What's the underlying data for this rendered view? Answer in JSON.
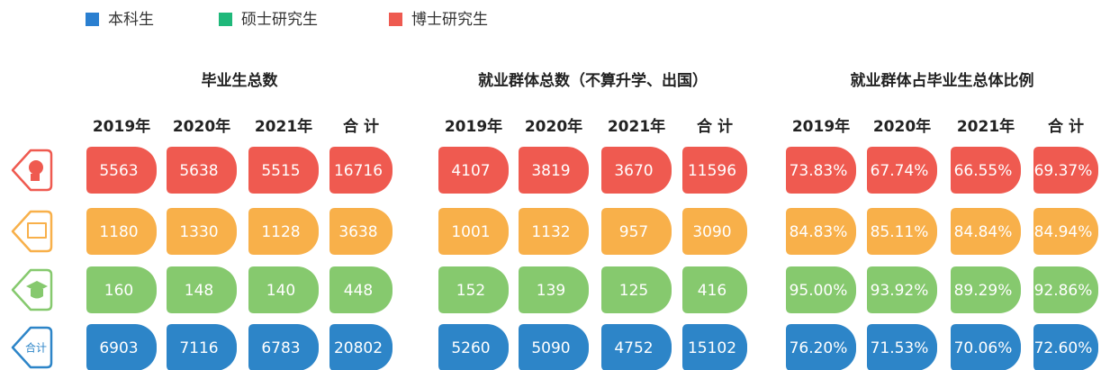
{
  "legend": [
    {
      "label": "本科生",
      "color": "#2a7fd0"
    },
    {
      "label": "硕士研究生",
      "color": "#1fb87a"
    },
    {
      "label": "博士研究生",
      "color": "#ee5a50"
    }
  ],
  "total_icon_label": "合计",
  "sections": [
    {
      "title": "毕业生总数",
      "columns": [
        "2019年",
        "2020年",
        "2021年",
        "合 计"
      ],
      "rows": [
        [
          "5563",
          "5638",
          "5515",
          "16716"
        ],
        [
          "1180",
          "1330",
          "1128",
          "3638"
        ],
        [
          "160",
          "148",
          "140",
          "448"
        ],
        [
          "6903",
          "7116",
          "6783",
          "20802"
        ]
      ]
    },
    {
      "title": "就业群体总数（不算升学、出国）",
      "columns": [
        "2019年",
        "2020年",
        "2021年",
        "合 计"
      ],
      "rows": [
        [
          "4107",
          "3819",
          "3670",
          "11596"
        ],
        [
          "1001",
          "1132",
          "957",
          "3090"
        ],
        [
          "152",
          "139",
          "125",
          "416"
        ],
        [
          "5260",
          "5090",
          "4752",
          "15102"
        ]
      ]
    },
    {
      "title": "就业群体占毕业生总体比例",
      "columns": [
        "2019年",
        "2020年",
        "2021年",
        "合 计"
      ],
      "rows": [
        [
          "73.83%",
          "67.74%",
          "66.55%",
          "69.37%"
        ],
        [
          "84.83%",
          "85.11%",
          "84.84%",
          "84.94%"
        ],
        [
          "95.00%",
          "93.92%",
          "89.29%",
          "92.86%"
        ],
        [
          "76.20%",
          "71.53%",
          "70.06%",
          "72.60%"
        ]
      ]
    }
  ]
}
